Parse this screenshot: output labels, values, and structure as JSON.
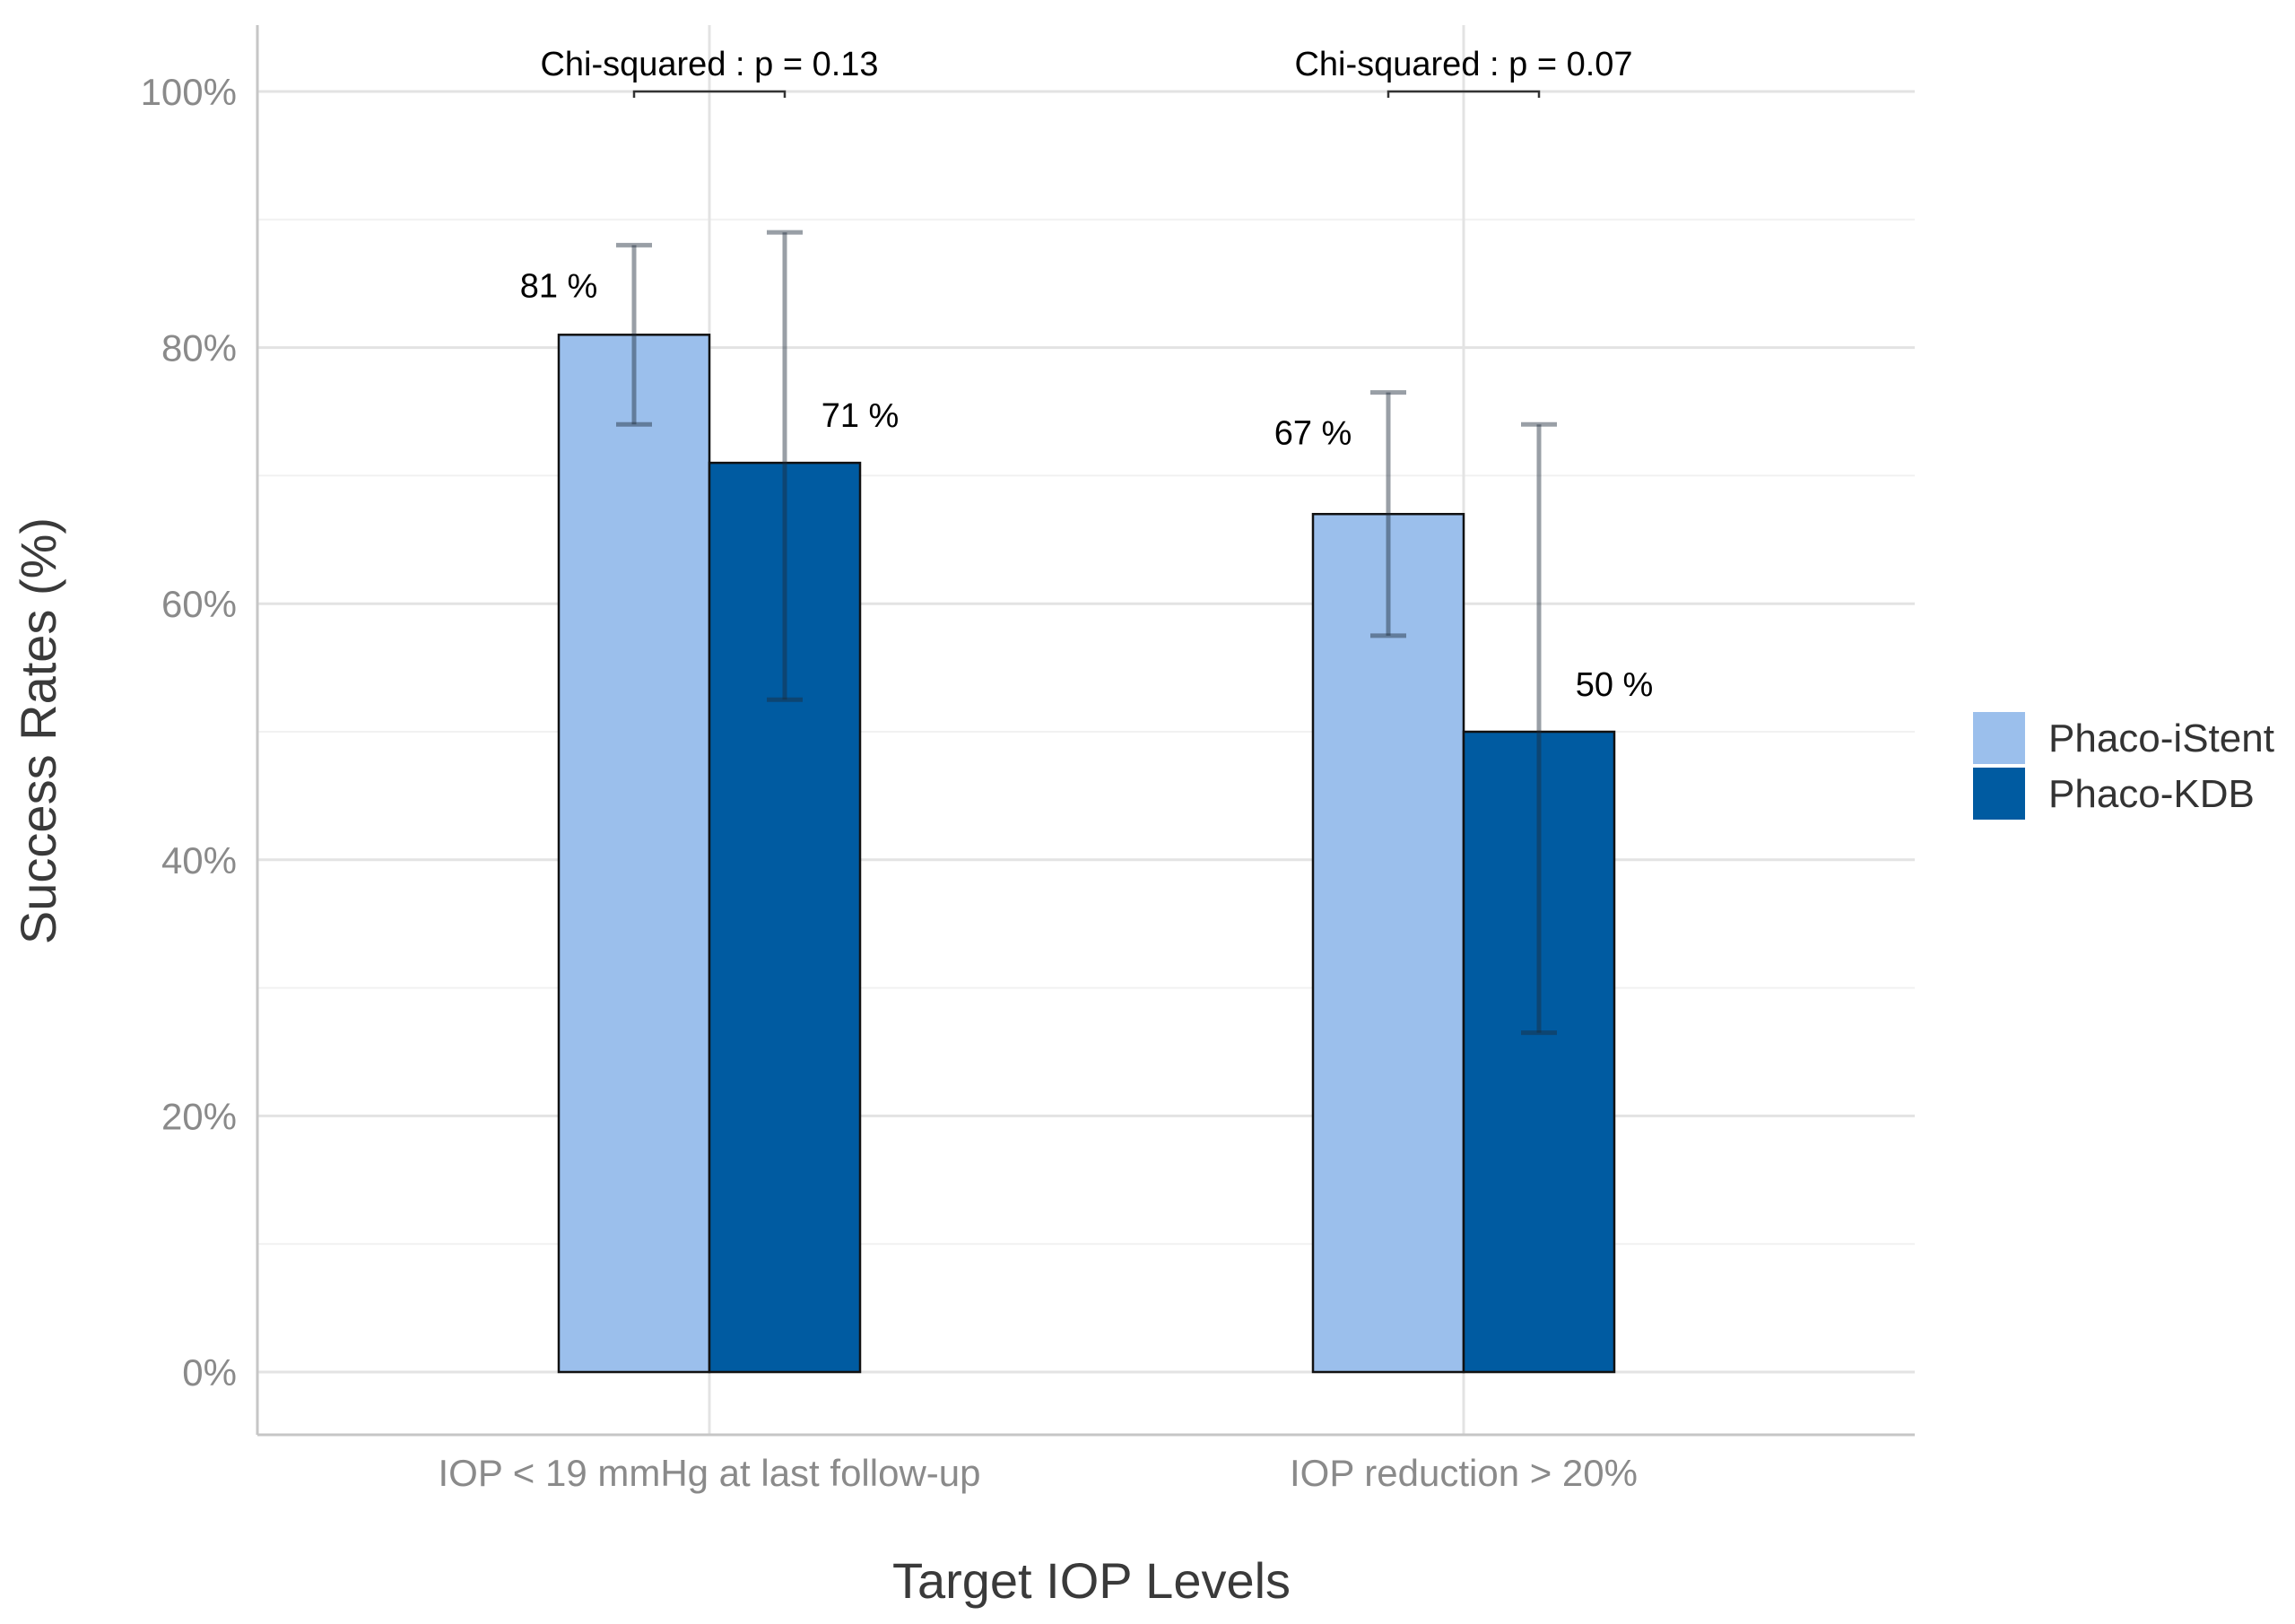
{
  "chart_data": {
    "type": "bar",
    "categories": [
      "IOP < 19 mmHg at last follow-up",
      "IOP reduction > 20%"
    ],
    "series": [
      {
        "name": "Phaco-iStent",
        "color": "#9bbfec",
        "values": [
          81,
          67
        ],
        "labels": [
          "81 %",
          "67 %"
        ],
        "ci_low": [
          74,
          57.5
        ],
        "ci_high": [
          88,
          76.5
        ]
      },
      {
        "name": "Phaco-KDB",
        "color": "#005ba1",
        "values": [
          71,
          50
        ],
        "labels": [
          "71 %",
          "50 %"
        ],
        "ci_low": [
          52.5,
          26.5
        ],
        "ci_high": [
          89,
          74
        ]
      }
    ],
    "annotations": [
      "Chi-squared : p = 0.13",
      "Chi-squared : p = 0.07"
    ],
    "xlabel": "Target IOP Levels",
    "ylabel": "Success Rates (%)",
    "ylim": [
      0,
      100
    ],
    "yticks": [
      0,
      20,
      40,
      60,
      80,
      100
    ],
    "ytick_labels": [
      "0%",
      "20%",
      "40%",
      "60%",
      "80%",
      "100%"
    ],
    "grid": true,
    "legend_position": "right"
  }
}
